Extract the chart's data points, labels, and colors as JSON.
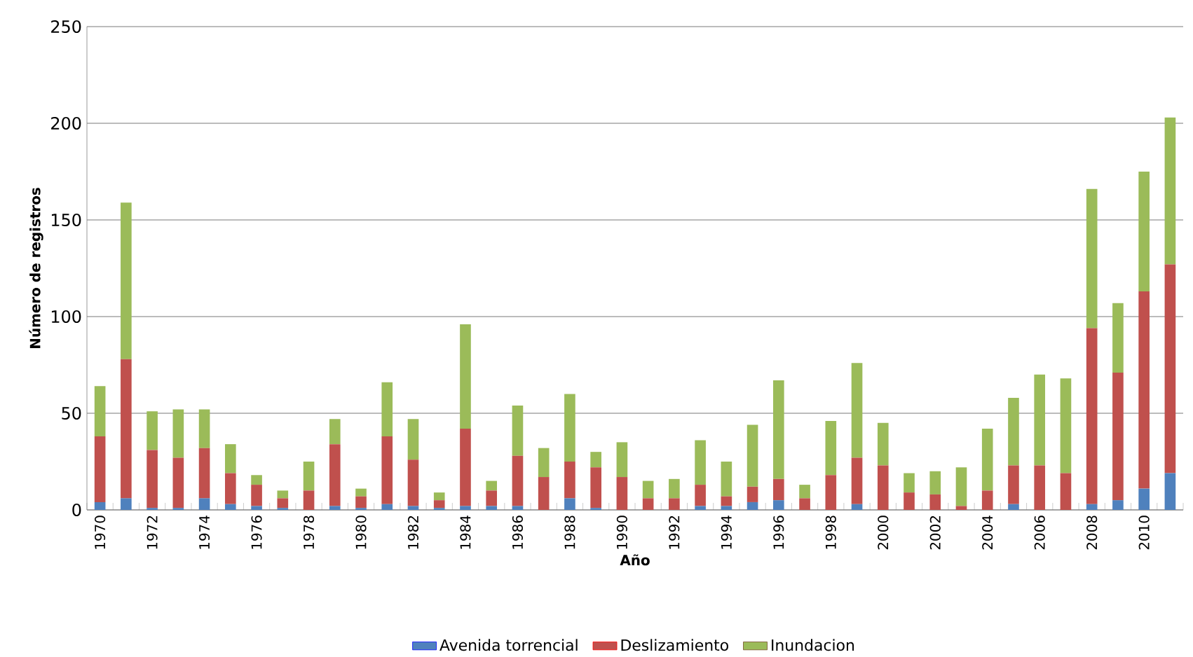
{
  "chart_data": {
    "type": "bar",
    "stacked": true,
    "xlabel": "Año",
    "ylabel": "Número de registros",
    "categories": [
      "1970",
      null,
      "1972",
      null,
      "1974",
      null,
      "1976",
      null,
      "1978",
      null,
      "1980",
      null,
      "1982",
      null,
      "1984",
      null,
      "1986",
      null,
      "1988",
      null,
      "1990",
      null,
      "1992",
      null,
      "1994",
      null,
      "1996",
      null,
      "1998",
      null,
      "2000",
      null,
      "2002",
      null,
      "2004",
      null,
      "2006",
      null,
      "2008",
      null,
      "2010",
      null
    ],
    "series": [
      {
        "name": "Avenida torrencial",
        "color": "#4f81bd",
        "values": [
          4,
          6,
          1,
          1,
          6,
          3,
          2,
          1,
          0,
          2,
          1,
          3,
          2,
          1,
          2,
          2,
          2,
          0,
          6,
          1,
          0,
          0,
          0,
          2,
          2,
          4,
          5,
          0,
          0,
          3,
          0,
          0,
          0,
          0,
          0,
          3,
          0,
          0,
          3,
          5,
          11,
          19
        ]
      },
      {
        "name": "Deslizamiento",
        "color": "#c0504d",
        "values": [
          34,
          72,
          30,
          26,
          26,
          16,
          11,
          5,
          10,
          32,
          6,
          35,
          24,
          4,
          40,
          8,
          26,
          17,
          19,
          21,
          17,
          6,
          6,
          11,
          5,
          8,
          11,
          6,
          18,
          24,
          23,
          9,
          8,
          2,
          10,
          20,
          23,
          19,
          91,
          66,
          102,
          108
        ]
      },
      {
        "name": "Inundacion",
        "color": "#9bbb59",
        "values": [
          26,
          81,
          20,
          25,
          20,
          15,
          5,
          4,
          15,
          13,
          4,
          28,
          21,
          4,
          54,
          5,
          26,
          15,
          35,
          8,
          18,
          9,
          10,
          23,
          18,
          32,
          51,
          7,
          28,
          49,
          22,
          10,
          12,
          20,
          32,
          35,
          47,
          49,
          72,
          36,
          62,
          76
        ]
      }
    ],
    "ylim": [
      0,
      250
    ],
    "yticks": [
      0,
      50,
      100,
      150,
      200,
      250
    ],
    "grid": "y",
    "legend": "bottom"
  }
}
